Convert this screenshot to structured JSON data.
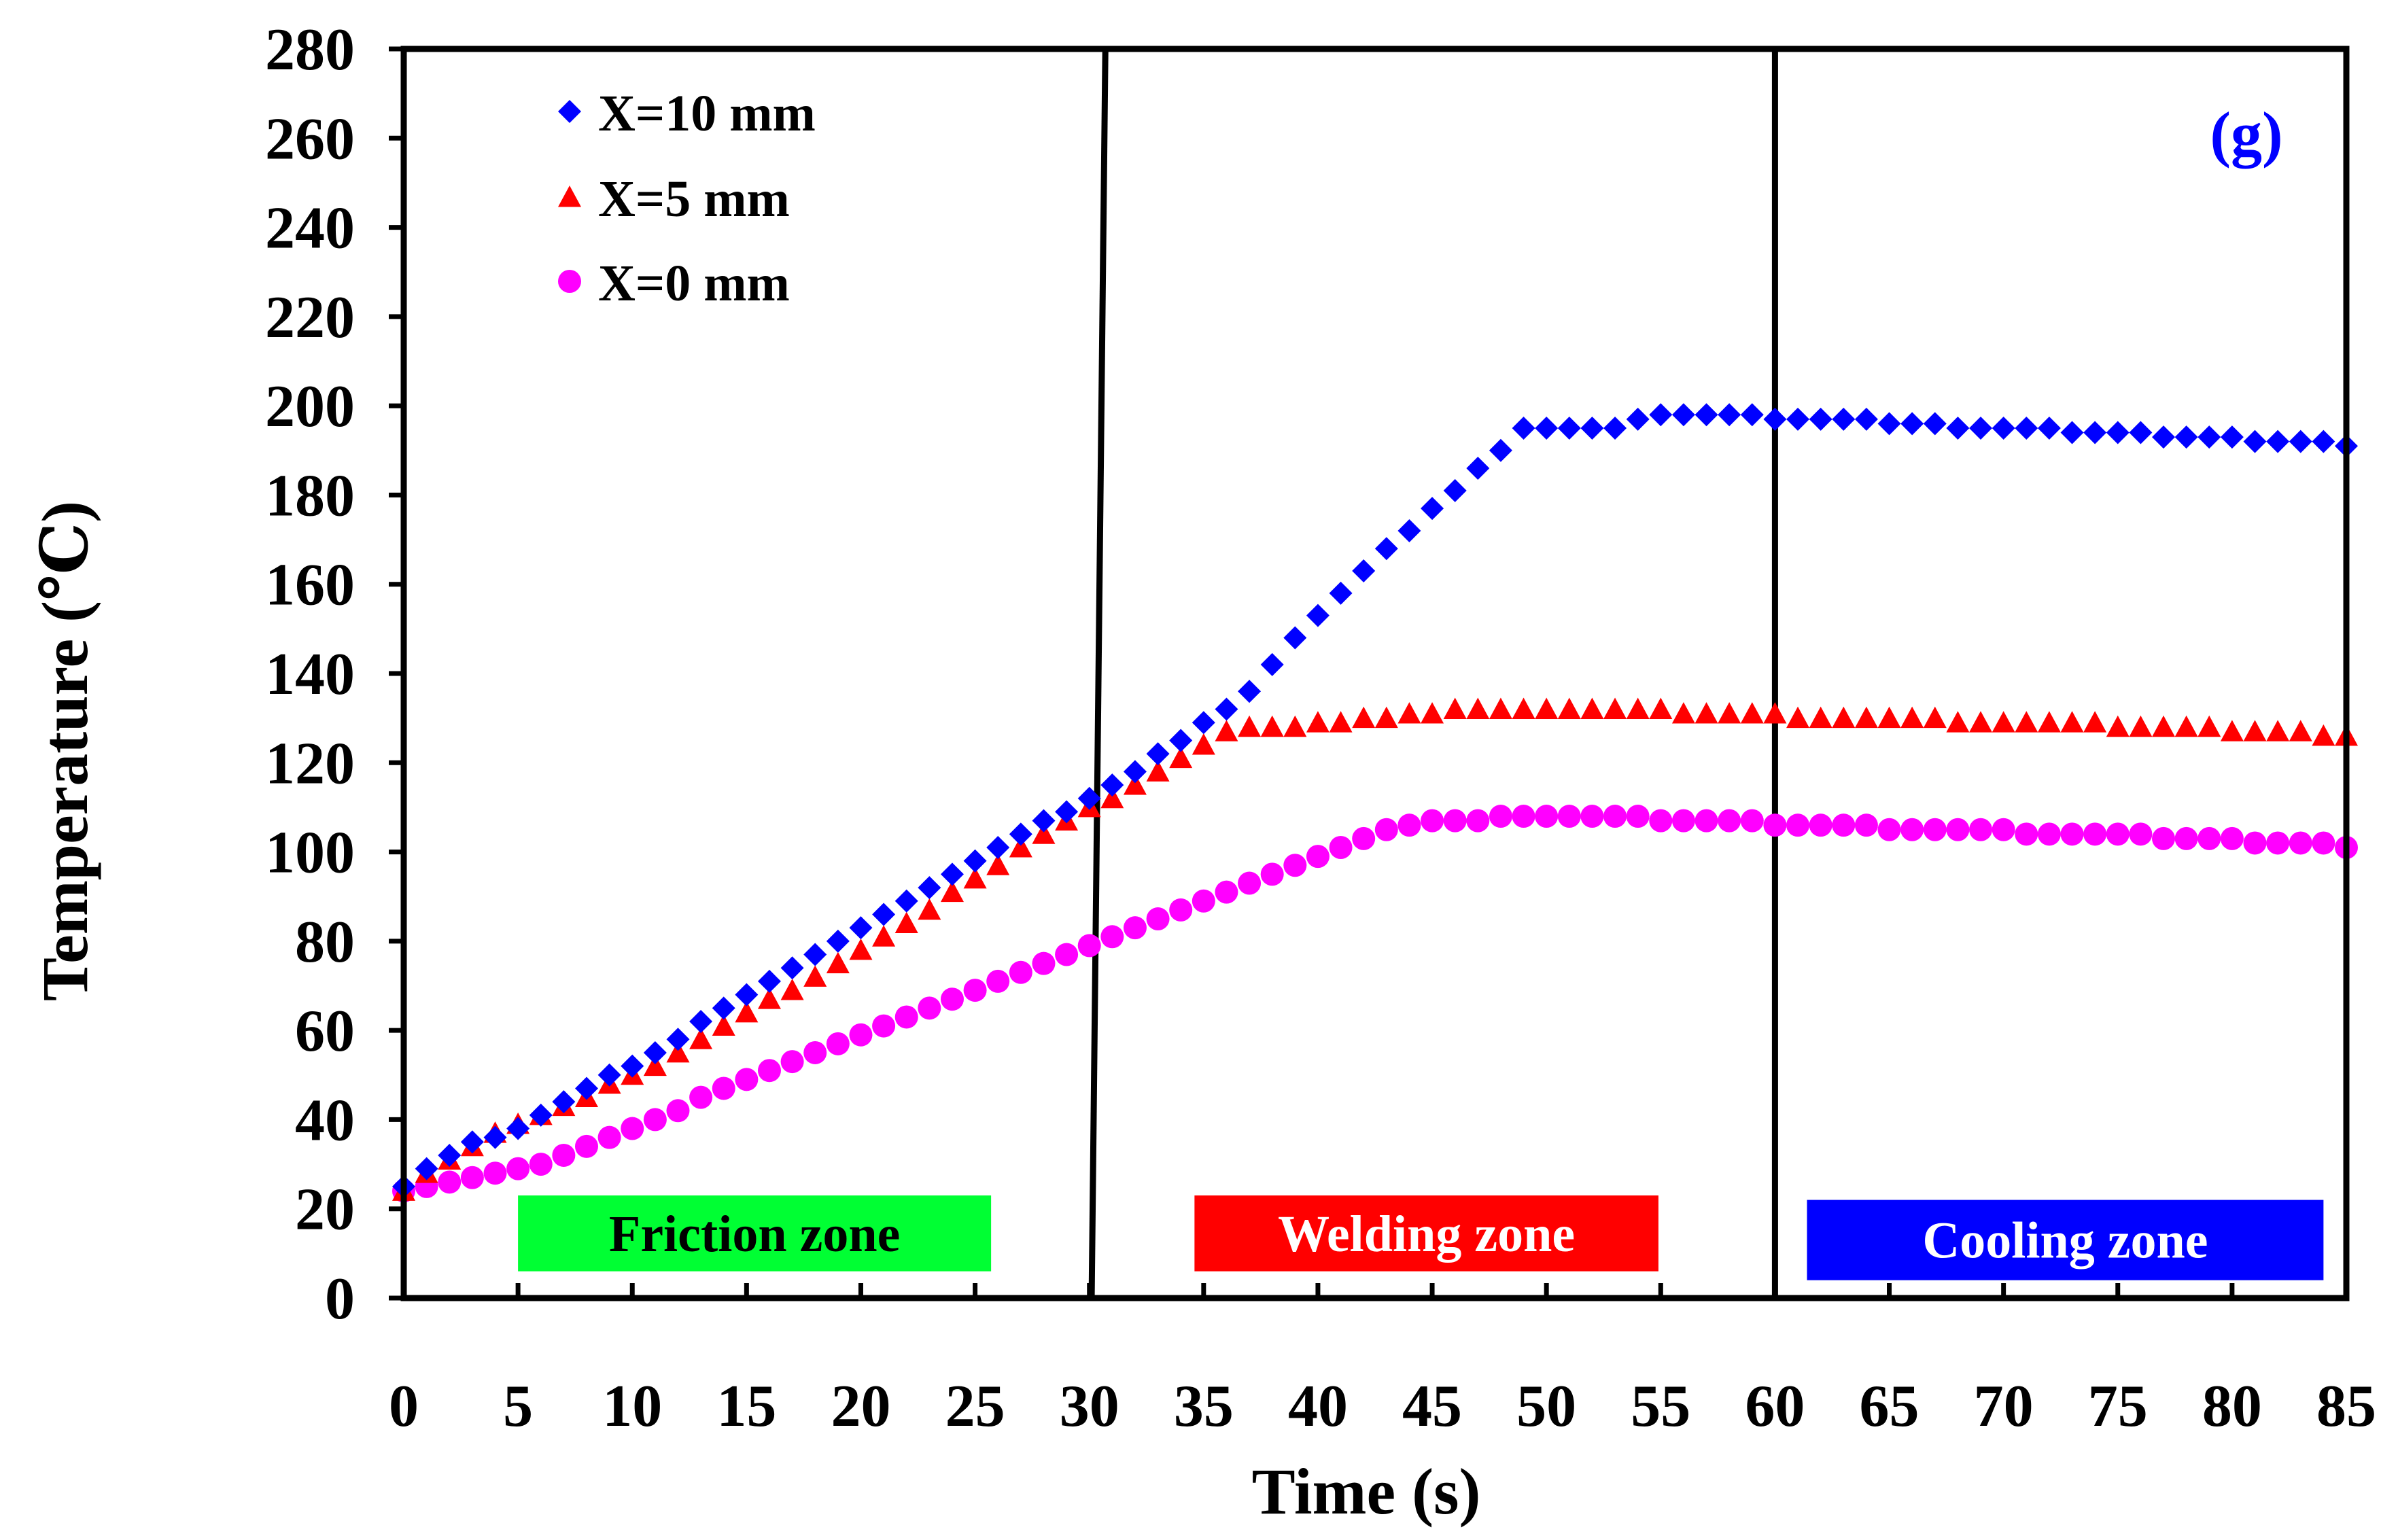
{
  "chart_data": {
    "type": "scatter",
    "title": "",
    "panel_label": "(g)",
    "xlabel": "Time (s)",
    "ylabel": "Temperature (℃)",
    "xlim": [
      0,
      85
    ],
    "ylim": [
      0,
      280
    ],
    "x_ticks": [
      0,
      5,
      10,
      15,
      20,
      25,
      30,
      35,
      40,
      45,
      50,
      55,
      60,
      65,
      70,
      75,
      80,
      85
    ],
    "y_ticks": [
      0,
      20,
      40,
      60,
      80,
      100,
      120,
      140,
      160,
      180,
      200,
      220,
      240,
      260,
      280
    ],
    "grid": false,
    "legend_position": "top-left",
    "colors": {
      "x10": "#0000ff",
      "x5": "#ff0000",
      "x0": "#ff00ff",
      "friction_zone": "#00ff33",
      "welding_zone": "#ff0000",
      "cooling_zone": "#0000ff",
      "divider": "#000000"
    },
    "series": [
      {
        "name": "X=10 mm",
        "marker": "diamond",
        "color": "#0000ff",
        "x": [
          0,
          1,
          2,
          3,
          4,
          5,
          6,
          7,
          8,
          9,
          10,
          11,
          12,
          13,
          14,
          15,
          16,
          17,
          18,
          19,
          20,
          21,
          22,
          23,
          24,
          25,
          26,
          27,
          28,
          29,
          30,
          31,
          32,
          33,
          34,
          35,
          36,
          37,
          38,
          39,
          40,
          41,
          42,
          43,
          44,
          45,
          46,
          47,
          48,
          49,
          50,
          51,
          52,
          53,
          54,
          55,
          56,
          57,
          58,
          59,
          60,
          61,
          62,
          63,
          64,
          65,
          66,
          67,
          68,
          69,
          70,
          71,
          72,
          73,
          74,
          75,
          76,
          77,
          78,
          79,
          80,
          81,
          82,
          83,
          84,
          85
        ],
        "y": [
          25,
          29,
          32,
          35,
          36,
          38,
          41,
          44,
          47,
          50,
          52,
          55,
          58,
          62,
          65,
          68,
          71,
          74,
          77,
          80,
          83,
          86,
          89,
          92,
          95,
          98,
          101,
          104,
          107,
          109,
          112,
          115,
          118,
          122,
          125,
          129,
          132,
          136,
          142,
          148,
          153,
          158,
          163,
          168,
          172,
          177,
          181,
          186,
          190,
          195,
          195,
          195,
          195,
          195,
          197,
          198,
          198,
          198,
          198,
          198,
          197,
          197,
          197,
          197,
          197,
          196,
          196,
          196,
          195,
          195,
          195,
          195,
          195,
          194,
          194,
          194,
          194,
          193,
          193,
          193,
          193,
          192,
          192,
          192,
          192,
          191
        ]
      },
      {
        "name": "X=5 mm",
        "marker": "triangle",
        "color": "#ff0000",
        "x": [
          0,
          1,
          2,
          3,
          4,
          5,
          6,
          7,
          8,
          9,
          10,
          11,
          12,
          13,
          14,
          15,
          16,
          17,
          18,
          19,
          20,
          21,
          22,
          23,
          24,
          25,
          26,
          27,
          28,
          29,
          30,
          31,
          32,
          33,
          34,
          35,
          36,
          37,
          38,
          39,
          40,
          41,
          42,
          43,
          44,
          45,
          46,
          47,
          48,
          49,
          50,
          51,
          52,
          53,
          54,
          55,
          56,
          57,
          58,
          59,
          60,
          61,
          62,
          63,
          64,
          65,
          66,
          67,
          68,
          69,
          70,
          71,
          72,
          73,
          74,
          75,
          76,
          77,
          78,
          79,
          80,
          81,
          82,
          83,
          84,
          85
        ],
        "y": [
          24,
          28,
          31,
          34,
          37,
          39,
          41,
          43,
          45,
          48,
          50,
          52,
          55,
          58,
          61,
          64,
          67,
          69,
          72,
          75,
          78,
          81,
          84,
          87,
          91,
          94,
          97,
          101,
          104,
          107,
          110,
          112,
          115,
          118,
          121,
          124,
          127,
          128,
          128,
          128,
          129,
          129,
          130,
          130,
          131,
          131,
          132,
          132,
          132,
          132,
          132,
          132,
          132,
          132,
          132,
          132,
          131,
          131,
          131,
          131,
          131,
          130,
          130,
          130,
          130,
          130,
          130,
          130,
          129,
          129,
          129,
          129,
          129,
          129,
          129,
          128,
          128,
          128,
          128,
          128,
          127,
          127,
          127,
          127,
          126,
          126
        ]
      },
      {
        "name": "X=0 mm",
        "marker": "circle",
        "color": "#ff00ff",
        "x": [
          0,
          1,
          2,
          3,
          4,
          5,
          6,
          7,
          8,
          9,
          10,
          11,
          12,
          13,
          14,
          15,
          16,
          17,
          18,
          19,
          20,
          21,
          22,
          23,
          24,
          25,
          26,
          27,
          28,
          29,
          30,
          31,
          32,
          33,
          34,
          35,
          36,
          37,
          38,
          39,
          40,
          41,
          42,
          43,
          44,
          45,
          46,
          47,
          48,
          49,
          50,
          51,
          52,
          53,
          54,
          55,
          56,
          57,
          58,
          59,
          60,
          61,
          62,
          63,
          64,
          65,
          66,
          67,
          68,
          69,
          70,
          71,
          72,
          73,
          74,
          75,
          76,
          77,
          78,
          79,
          80,
          81,
          82,
          83,
          84,
          85
        ],
        "y": [
          24,
          25,
          26,
          27,
          28,
          29,
          30,
          32,
          34,
          36,
          38,
          40,
          42,
          45,
          47,
          49,
          51,
          53,
          55,
          57,
          59,
          61,
          63,
          65,
          67,
          69,
          71,
          73,
          75,
          77,
          79,
          81,
          83,
          85,
          87,
          89,
          91,
          93,
          95,
          97,
          99,
          101,
          103,
          105,
          106,
          107,
          107,
          107,
          108,
          108,
          108,
          108,
          108,
          108,
          108,
          107,
          107,
          107,
          107,
          107,
          106,
          106,
          106,
          106,
          106,
          105,
          105,
          105,
          105,
          105,
          105,
          104,
          104,
          104,
          104,
          104,
          104,
          103,
          103,
          103,
          103,
          102,
          102,
          102,
          102,
          101
        ]
      }
    ],
    "zones": [
      {
        "label": "Friction zone",
        "x_start": 5,
        "x_end": 25.7,
        "y_low": 6,
        "y_high": 23,
        "color": "#00ff33",
        "text_color": "#000000"
      },
      {
        "label": "Welding zone",
        "x_start": 34.6,
        "x_end": 54.9,
        "y_low": 6,
        "y_high": 23,
        "color": "#ff0000",
        "text_color": "#ffffff"
      },
      {
        "label": "Cooling zone",
        "x_start": 61.4,
        "x_end": 84.0,
        "y_low": 4,
        "y_high": 22,
        "color": "#0000ff",
        "text_color": "#ffffff"
      }
    ],
    "dividers": [
      {
        "x_top": 30.7,
        "x_bottom": 30.1
      },
      {
        "x_top": 60.0,
        "x_bottom": 60.0
      }
    ]
  }
}
